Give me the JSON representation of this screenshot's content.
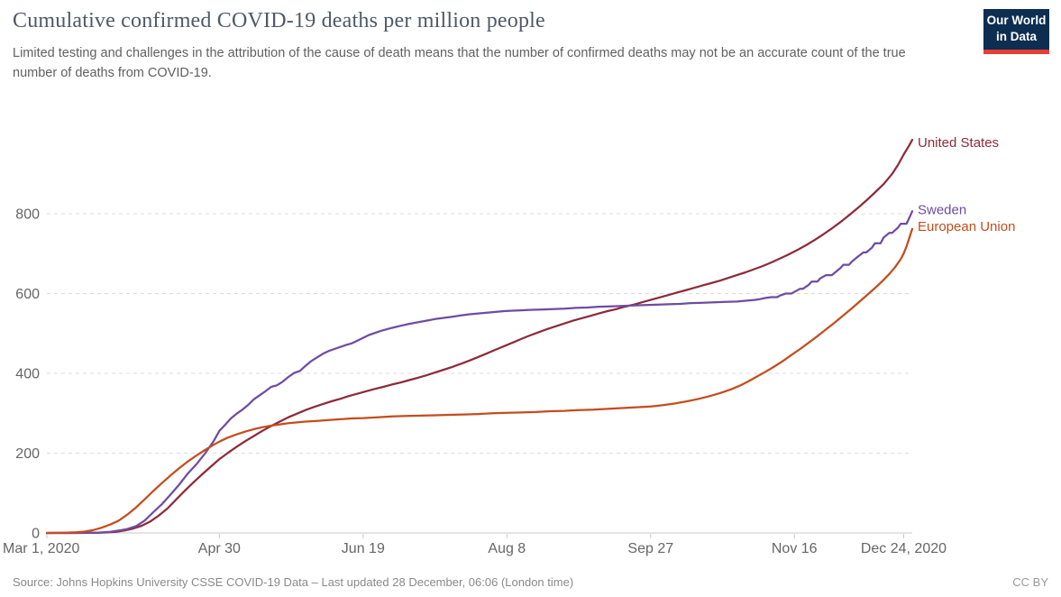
{
  "header": {
    "title": "Cumulative confirmed COVID-19 deaths per million people",
    "subtitle": "Limited testing and challenges in the attribution of the cause of death means that the number of confirmed deaths may not be an accurate count of the true number of deaths from COVID-19."
  },
  "logo": {
    "line1": "Our World",
    "line2": "in Data",
    "colors": {
      "navy": "#0d2e51",
      "red": "#e63e36"
    }
  },
  "footer": {
    "source": "Source: Johns Hopkins University CSSE COVID-19 Data – Last updated 28 December, 06:06 (London time)",
    "license": "CC BY"
  },
  "chart_data": {
    "type": "line",
    "title": "Cumulative confirmed COVID-19 deaths per million people",
    "xlabel": "",
    "ylabel": "",
    "x_unit": "days since Mar 1, 2020",
    "x_range_days": [
      0,
      301
    ],
    "ylim": [
      0,
      1000
    ],
    "y_ticks": [
      0,
      200,
      400,
      600,
      800
    ],
    "grid": "horizontal-dashed",
    "legend_position": "line-end-labels",
    "x_ticks": [
      {
        "day": 0,
        "label": "Mar 1, 2020"
      },
      {
        "day": 60,
        "label": "Apr 30"
      },
      {
        "day": 110,
        "label": "Jun 19"
      },
      {
        "day": 160,
        "label": "Aug 8"
      },
      {
        "day": 210,
        "label": "Sep 27"
      },
      {
        "day": 260,
        "label": "Nov 16"
      },
      {
        "day": 298,
        "label": "Dec 24, 2020"
      }
    ],
    "series": [
      {
        "name": "United States",
        "color": "#8d2b3a",
        "label_offset": 8,
        "points": [
          [
            0,
            0
          ],
          [
            8,
            0.1
          ],
          [
            14,
            0.3
          ],
          [
            18,
            0.7
          ],
          [
            21,
            1.3
          ],
          [
            24,
            3
          ],
          [
            27,
            6
          ],
          [
            30,
            11
          ],
          [
            33,
            18
          ],
          [
            36,
            29
          ],
          [
            39,
            44
          ],
          [
            42,
            62
          ],
          [
            45,
            84
          ],
          [
            48,
            106
          ],
          [
            51,
            127
          ],
          [
            54,
            147
          ],
          [
            57,
            166
          ],
          [
            60,
            185
          ],
          [
            63,
            201
          ],
          [
            66,
            216
          ],
          [
            69,
            230
          ],
          [
            72,
            243
          ],
          [
            75,
            256
          ],
          [
            78,
            268
          ],
          [
            81,
            279
          ],
          [
            84,
            290
          ],
          [
            87,
            299
          ],
          [
            90,
            308
          ],
          [
            93,
            316
          ],
          [
            96,
            323
          ],
          [
            99,
            330
          ],
          [
            102,
            336
          ],
          [
            105,
            343
          ],
          [
            108,
            349
          ],
          [
            111,
            355
          ],
          [
            114,
            361
          ],
          [
            117,
            366
          ],
          [
            120,
            372
          ],
          [
            123,
            377
          ],
          [
            126,
            383
          ],
          [
            129,
            389
          ],
          [
            132,
            395
          ],
          [
            135,
            402
          ],
          [
            138,
            409
          ],
          [
            141,
            416
          ],
          [
            144,
            424
          ],
          [
            147,
            432
          ],
          [
            150,
            441
          ],
          [
            153,
            450
          ],
          [
            156,
            459
          ],
          [
            159,
            468
          ],
          [
            162,
            477
          ],
          [
            165,
            486
          ],
          [
            168,
            495
          ],
          [
            171,
            503
          ],
          [
            174,
            511
          ],
          [
            177,
            518
          ],
          [
            180,
            525
          ],
          [
            183,
            532
          ],
          [
            186,
            538
          ],
          [
            189,
            544
          ],
          [
            192,
            550
          ],
          [
            195,
            556
          ],
          [
            198,
            561
          ],
          [
            201,
            567
          ],
          [
            204,
            572
          ],
          [
            207,
            578
          ],
          [
            210,
            584
          ],
          [
            213,
            590
          ],
          [
            216,
            596
          ],
          [
            219,
            602
          ],
          [
            222,
            608
          ],
          [
            225,
            614
          ],
          [
            228,
            620
          ],
          [
            231,
            626
          ],
          [
            234,
            632
          ],
          [
            237,
            639
          ],
          [
            240,
            646
          ],
          [
            243,
            653
          ],
          [
            246,
            661
          ],
          [
            249,
            669
          ],
          [
            252,
            678
          ],
          [
            255,
            688
          ],
          [
            258,
            698
          ],
          [
            261,
            709
          ],
          [
            264,
            721
          ],
          [
            267,
            734
          ],
          [
            270,
            748
          ],
          [
            273,
            763
          ],
          [
            276,
            779
          ],
          [
            279,
            796
          ],
          [
            282,
            814
          ],
          [
            285,
            833
          ],
          [
            288,
            853
          ],
          [
            291,
            874
          ],
          [
            294,
            900
          ],
          [
            296,
            922
          ],
          [
            298,
            948
          ],
          [
            300,
            972
          ],
          [
            301,
            985
          ]
        ]
      },
      {
        "name": "Sweden",
        "color": "#6e4ca3",
        "label_offset": 3,
        "points": [
          [
            0,
            0
          ],
          [
            10,
            0.1
          ],
          [
            14,
            0.3
          ],
          [
            18,
            1
          ],
          [
            22,
            3
          ],
          [
            25,
            6
          ],
          [
            28,
            10
          ],
          [
            31,
            17
          ],
          [
            34,
            31
          ],
          [
            37,
            52
          ],
          [
            40,
            72
          ],
          [
            43,
            96
          ],
          [
            46,
            121
          ],
          [
            49,
            149
          ],
          [
            52,
            172
          ],
          [
            55,
            199
          ],
          [
            58,
            230
          ],
          [
            60,
            256
          ],
          [
            62,
            271
          ],
          [
            64,
            287
          ],
          [
            66,
            299
          ],
          [
            68,
            309
          ],
          [
            70,
            321
          ],
          [
            72,
            335
          ],
          [
            74,
            345
          ],
          [
            76,
            355
          ],
          [
            78,
            366
          ],
          [
            80,
            370
          ],
          [
            82,
            379
          ],
          [
            84,
            391
          ],
          [
            86,
            401
          ],
          [
            88,
            406
          ],
          [
            90,
            419
          ],
          [
            92,
            431
          ],
          [
            94,
            440
          ],
          [
            96,
            449
          ],
          [
            98,
            456
          ],
          [
            100,
            461
          ],
          [
            102,
            466
          ],
          [
            104,
            471
          ],
          [
            106,
            475
          ],
          [
            108,
            482
          ],
          [
            110,
            489
          ],
          [
            112,
            496
          ],
          [
            114,
            501
          ],
          [
            116,
            506
          ],
          [
            118,
            510
          ],
          [
            120,
            514
          ],
          [
            123,
            519
          ],
          [
            126,
            524
          ],
          [
            129,
            528
          ],
          [
            132,
            532
          ],
          [
            135,
            536
          ],
          [
            138,
            539
          ],
          [
            141,
            542
          ],
          [
            144,
            545
          ],
          [
            147,
            548
          ],
          [
            150,
            550
          ],
          [
            153,
            552
          ],
          [
            156,
            554
          ],
          [
            159,
            556
          ],
          [
            162,
            557
          ],
          [
            165,
            558
          ],
          [
            168,
            559
          ],
          [
            172,
            560
          ],
          [
            176,
            561
          ],
          [
            180,
            562
          ],
          [
            184,
            564
          ],
          [
            188,
            565
          ],
          [
            192,
            567
          ],
          [
            196,
            568
          ],
          [
            200,
            569
          ],
          [
            204,
            570
          ],
          [
            208,
            571
          ],
          [
            212,
            572
          ],
          [
            216,
            573
          ],
          [
            220,
            574
          ],
          [
            224,
            576
          ],
          [
            228,
            577
          ],
          [
            232,
            578
          ],
          [
            236,
            579
          ],
          [
            240,
            580
          ],
          [
            243,
            582
          ],
          [
            246,
            584
          ],
          [
            248,
            586
          ],
          [
            250,
            589
          ],
          [
            252,
            591
          ],
          [
            254,
            591
          ],
          [
            255,
            595
          ],
          [
            257,
            600
          ],
          [
            259,
            600
          ],
          [
            260,
            604
          ],
          [
            262,
            612
          ],
          [
            263,
            612
          ],
          [
            265,
            622
          ],
          [
            266,
            630
          ],
          [
            268,
            630
          ],
          [
            269,
            638
          ],
          [
            271,
            646
          ],
          [
            273,
            646
          ],
          [
            274,
            652
          ],
          [
            276,
            664
          ],
          [
            277,
            672
          ],
          [
            279,
            672
          ],
          [
            280,
            680
          ],
          [
            282,
            692
          ],
          [
            284,
            703
          ],
          [
            285,
            703
          ],
          [
            287,
            715
          ],
          [
            288,
            726
          ],
          [
            290,
            726
          ],
          [
            291,
            740
          ],
          [
            293,
            752
          ],
          [
            294,
            752
          ],
          [
            296,
            765
          ],
          [
            297,
            775
          ],
          [
            299,
            775
          ],
          [
            300,
            790
          ],
          [
            301,
            806
          ]
        ]
      },
      {
        "name": "European Union",
        "color": "#c44d1d",
        "label_offset": 2,
        "points": [
          [
            0,
            0.1
          ],
          [
            6,
            0.6
          ],
          [
            10,
            1.5
          ],
          [
            13,
            3.5
          ],
          [
            16,
            7
          ],
          [
            19,
            13
          ],
          [
            22,
            21
          ],
          [
            25,
            31
          ],
          [
            28,
            46
          ],
          [
            31,
            64
          ],
          [
            34,
            84
          ],
          [
            37,
            105
          ],
          [
            40,
            125
          ],
          [
            43,
            144
          ],
          [
            46,
            162
          ],
          [
            49,
            179
          ],
          [
            52,
            194
          ],
          [
            55,
            208
          ],
          [
            58,
            221
          ],
          [
            60,
            229
          ],
          [
            63,
            239
          ],
          [
            66,
            247
          ],
          [
            69,
            254
          ],
          [
            72,
            260
          ],
          [
            75,
            265
          ],
          [
            78,
            269
          ],
          [
            81,
            272
          ],
          [
            84,
            275
          ],
          [
            87,
            277
          ],
          [
            90,
            279
          ],
          [
            94,
            281
          ],
          [
            98,
            283
          ],
          [
            102,
            285
          ],
          [
            106,
            287
          ],
          [
            110,
            288
          ],
          [
            115,
            290
          ],
          [
            120,
            292
          ],
          [
            125,
            293
          ],
          [
            130,
            294
          ],
          [
            135,
            295
          ],
          [
            140,
            296
          ],
          [
            145,
            297
          ],
          [
            150,
            298
          ],
          [
            155,
            300
          ],
          [
            160,
            301
          ],
          [
            165,
            302
          ],
          [
            170,
            303
          ],
          [
            175,
            305
          ],
          [
            180,
            306
          ],
          [
            185,
            308
          ],
          [
            190,
            309
          ],
          [
            195,
            311
          ],
          [
            200,
            313
          ],
          [
            205,
            315
          ],
          [
            210,
            317
          ],
          [
            214,
            320
          ],
          [
            218,
            324
          ],
          [
            222,
            329
          ],
          [
            226,
            335
          ],
          [
            230,
            342
          ],
          [
            234,
            350
          ],
          [
            238,
            360
          ],
          [
            241,
            369
          ],
          [
            244,
            380
          ],
          [
            247,
            392
          ],
          [
            250,
            404
          ],
          [
            253,
            417
          ],
          [
            256,
            431
          ],
          [
            259,
            446
          ],
          [
            262,
            461
          ],
          [
            265,
            477
          ],
          [
            268,
            493
          ],
          [
            271,
            510
          ],
          [
            274,
            527
          ],
          [
            277,
            545
          ],
          [
            280,
            563
          ],
          [
            283,
            582
          ],
          [
            286,
            601
          ],
          [
            289,
            620
          ],
          [
            291,
            634
          ],
          [
            293,
            649
          ],
          [
            295,
            666
          ],
          [
            297,
            686
          ],
          [
            298,
            700
          ],
          [
            299,
            718
          ],
          [
            300,
            740
          ],
          [
            301,
            762
          ]
        ]
      }
    ]
  }
}
